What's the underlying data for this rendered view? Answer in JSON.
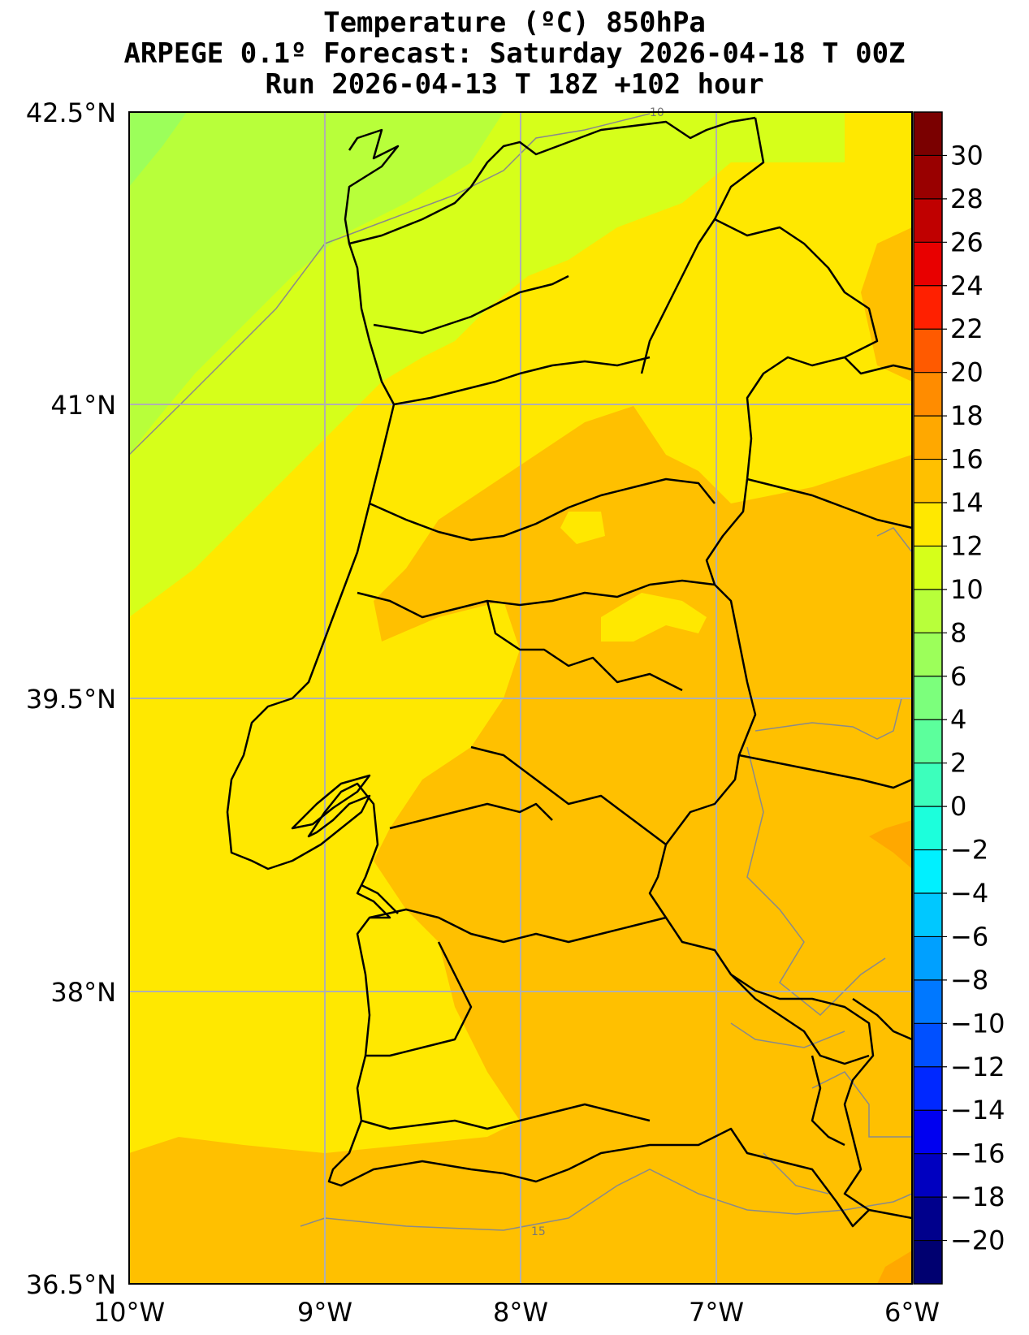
{
  "title": {
    "line1": "Temperature (ºC) 850hPa",
    "line2": "ARPEGE 0.1º Forecast: Saturday 2026-04-18 T 00Z",
    "line3": "Run 2026-04-13 T 18Z +102 hour"
  },
  "axes": {
    "lat_labels": [
      "42.5°N",
      "41°N",
      "39.5°N",
      "38°N",
      "36.5°N"
    ],
    "lon_labels": [
      "10°W",
      "9°W",
      "8°W",
      "7°W",
      "6°W"
    ]
  },
  "contour_labels": [
    "15",
    "10"
  ],
  "colorbar": {
    "labels": [
      "30",
      "28",
      "26",
      "24",
      "22",
      "20",
      "18",
      "16",
      "14",
      "12",
      "10",
      "8",
      "6",
      "4",
      "2",
      "0",
      "−2",
      "−4",
      "−6",
      "−8",
      "−10",
      "−12",
      "−14",
      "−16",
      "−18",
      "−20"
    ],
    "colors": [
      "#7a0000",
      "#990000",
      "#c00000",
      "#e80000",
      "#ff2000",
      "#ff5a00",
      "#ff8c00",
      "#ffa800",
      "#ffc000",
      "#ffe800",
      "#d6ff1a",
      "#b8ff3a",
      "#9cff5a",
      "#7cff7c",
      "#5cff9c",
      "#3cffbc",
      "#1cffdc",
      "#00f0ff",
      "#00c8ff",
      "#00a0ff",
      "#0078ff",
      "#0050ff",
      "#0028ff",
      "#0000f0",
      "#0000c0",
      "#00008c",
      "#000070"
    ]
  }
}
